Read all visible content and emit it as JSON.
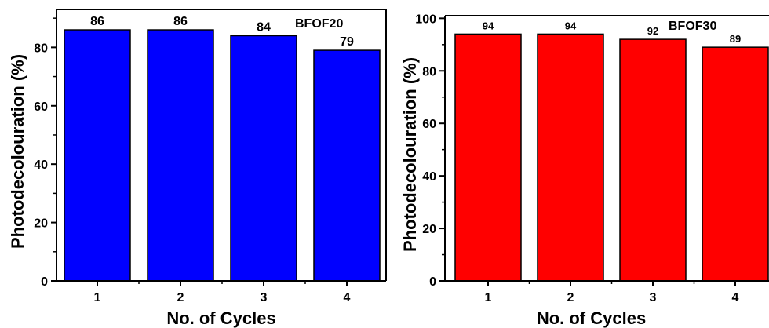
{
  "chart_data": [
    {
      "type": "bar",
      "title": "",
      "panel_label": "BFOF20",
      "categories": [
        "1",
        "2",
        "3",
        "4"
      ],
      "values": [
        86,
        86,
        84,
        79
      ],
      "data_labels": [
        "86",
        "86",
        "84",
        "79"
      ],
      "xlabel": "No. of Cycles",
      "ylabel": "Photodecolouration (%)",
      "ylim": [
        0,
        93
      ],
      "yticks": [
        0,
        20,
        40,
        60,
        80
      ],
      "bar_color": "#0000ff",
      "grid": false
    },
    {
      "type": "bar",
      "title": "",
      "panel_label": "BFOF30",
      "categories": [
        "1",
        "2",
        "3",
        "4"
      ],
      "values": [
        94,
        94,
        92,
        89
      ],
      "data_labels": [
        "94",
        "94",
        "92",
        "89"
      ],
      "xlabel": "No. of Cycles",
      "ylabel": "Photodecolouration (%)",
      "ylim": [
        0,
        101
      ],
      "yticks": [
        0,
        20,
        40,
        60,
        80,
        100
      ],
      "bar_color": "#ff0000",
      "grid": false
    }
  ]
}
